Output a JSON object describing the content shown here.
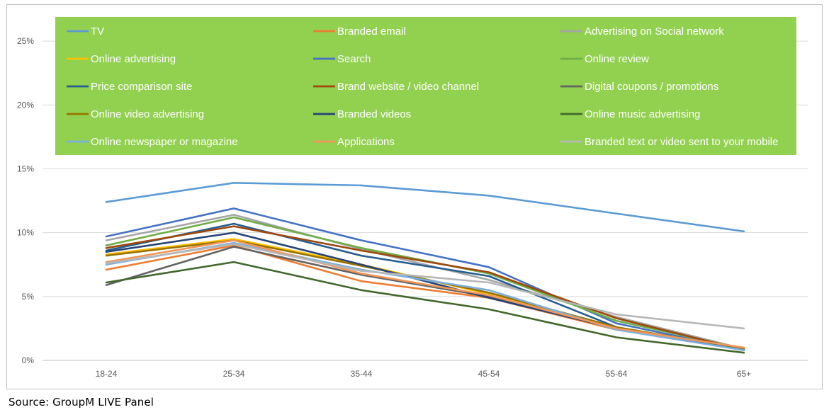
{
  "source_note": "Source: GroupM LIVE Panel",
  "chart_data": {
    "type": "line",
    "categories": [
      "18-24",
      "25-34",
      "35-44",
      "45-54",
      "55-64",
      "65+"
    ],
    "ylim": [
      0,
      27
    ],
    "yticks": [
      0,
      5,
      10,
      15,
      20,
      25
    ],
    "ytick_labels": [
      "0%",
      "5%",
      "10%",
      "15%",
      "20%",
      "25%"
    ],
    "grid": true,
    "legend_position": "top",
    "legend_background": "#92d050",
    "series": [
      {
        "name": "TV",
        "color": "#5b9bd5",
        "values": [
          12.4,
          13.9,
          13.7,
          12.9,
          11.5,
          10.1
        ]
      },
      {
        "name": "Branded email",
        "color": "#ed7d31",
        "values": [
          7.1,
          9.0,
          6.2,
          4.9,
          2.4,
          1.0
        ]
      },
      {
        "name": "Advertising on Social network",
        "color": "#a5a5a5",
        "values": [
          9.4,
          11.4,
          8.7,
          6.3,
          3.4,
          0.9
        ]
      },
      {
        "name": "Online advertising",
        "color": "#ffc000",
        "values": [
          8.3,
          9.5,
          7.5,
          5.2,
          2.5,
          0.9
        ]
      },
      {
        "name": "Search",
        "color": "#4472c4",
        "values": [
          9.7,
          11.9,
          9.4,
          7.3,
          2.9,
          0.8
        ]
      },
      {
        "name": "Online review",
        "color": "#70ad47",
        "values": [
          9.0,
          11.2,
          8.8,
          6.8,
          3.1,
          0.9
        ]
      },
      {
        "name": "Price comparison site",
        "color": "#255e91",
        "values": [
          8.6,
          10.7,
          8.2,
          6.6,
          2.6,
          0.8
        ]
      },
      {
        "name": "Brand website / video channel",
        "color": "#9e480e",
        "values": [
          8.8,
          10.5,
          8.6,
          6.9,
          3.3,
          0.8
        ]
      },
      {
        "name": "Digital coupons / promotions",
        "color": "#636363",
        "values": [
          5.9,
          8.9,
          6.7,
          5.0,
          2.5,
          0.9
        ]
      },
      {
        "name": "Online video advertising",
        "color": "#997300",
        "values": [
          8.2,
          9.4,
          7.4,
          5.3,
          2.6,
          0.9
        ]
      },
      {
        "name": "Branded videos",
        "color": "#264478",
        "values": [
          8.5,
          10.0,
          7.5,
          4.9,
          2.5,
          0.8
        ]
      },
      {
        "name": "Online music advertising",
        "color": "#43682b",
        "values": [
          6.1,
          7.7,
          5.5,
          4.0,
          1.8,
          0.6
        ]
      },
      {
        "name": "Online newspaper or magazine",
        "color": "#7cafdd",
        "values": [
          7.5,
          9.2,
          7.1,
          5.5,
          2.4,
          0.8
        ]
      },
      {
        "name": "Applications",
        "color": "#f1975a",
        "values": [
          7.7,
          9.4,
          6.8,
          5.1,
          2.5,
          1.0
        ]
      },
      {
        "name": "Branded text or video sent to your mobile",
        "color": "#b7b7b7",
        "values": [
          7.6,
          9.1,
          7.0,
          6.1,
          3.6,
          2.5
        ]
      }
    ]
  }
}
